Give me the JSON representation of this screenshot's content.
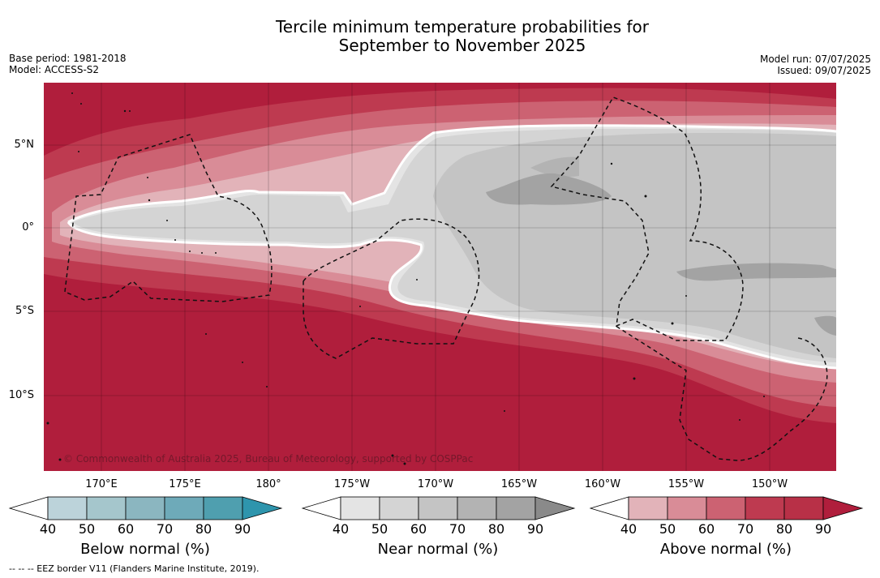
{
  "title": {
    "line1": "Tercile minimum temperature probabilities for",
    "line2": "September to November 2025"
  },
  "meta_left": {
    "base_period": "Base period: 1981-2018",
    "model": "Model: ACCESS-S2"
  },
  "meta_right": {
    "model_run": "Model run: 07/07/2025",
    "issued": "Issued: 09/07/2025"
  },
  "map": {
    "lat_labels": [
      "5°N",
      "0°",
      "5°S",
      "10°S"
    ],
    "lon_labels": [
      "170°E",
      "175°E",
      "180°",
      "175°W",
      "170°W",
      "165°W",
      "160°W",
      "155°W",
      "150°W"
    ],
    "copyright": "© Commonwealth of Australia 2025, Bureau of Meteorology, supported by COSPPac",
    "colors": {
      "above_90": "#b01e3c",
      "above_80": "#be3a50",
      "above_70": "#cc6272",
      "above_60": "#d98c97",
      "above_50": "#e2b3b9",
      "near_40_50": "#e4e4e4",
      "near_50_60": "#d4d4d4",
      "near_60_70": "#c4c4c4",
      "near_70_80": "#b3b3b3",
      "near_80_90": "#a3a3a3",
      "near_90_plus": "#8a8a8a"
    }
  },
  "colorbars": [
    {
      "title": "Below normal (%)",
      "ticks": [
        "40",
        "50",
        "60",
        "70",
        "80",
        "90"
      ],
      "colors": [
        "#bcd3da",
        "#a5c6cc",
        "#8bb6c0",
        "#6eaab9",
        "#4f9faf",
        "#2e95ad"
      ]
    },
    {
      "title": "Near normal (%)",
      "ticks": [
        "40",
        "50",
        "60",
        "70",
        "80",
        "90"
      ],
      "colors": [
        "#e4e4e4",
        "#d4d4d4",
        "#c4c4c4",
        "#b3b3b3",
        "#a3a3a3",
        "#8a8a8a"
      ]
    },
    {
      "title": "Above normal (%)",
      "ticks": [
        "40",
        "50",
        "60",
        "70",
        "80",
        "90"
      ],
      "colors": [
        "#e2b3b9",
        "#d98c97",
        "#cc6272",
        "#be3a50",
        "#b83047",
        "#b01e3c"
      ]
    }
  ],
  "footer": {
    "eez_note": "--  --  -- EEZ border V11 (Flanders Marine Institute, 2019)."
  }
}
